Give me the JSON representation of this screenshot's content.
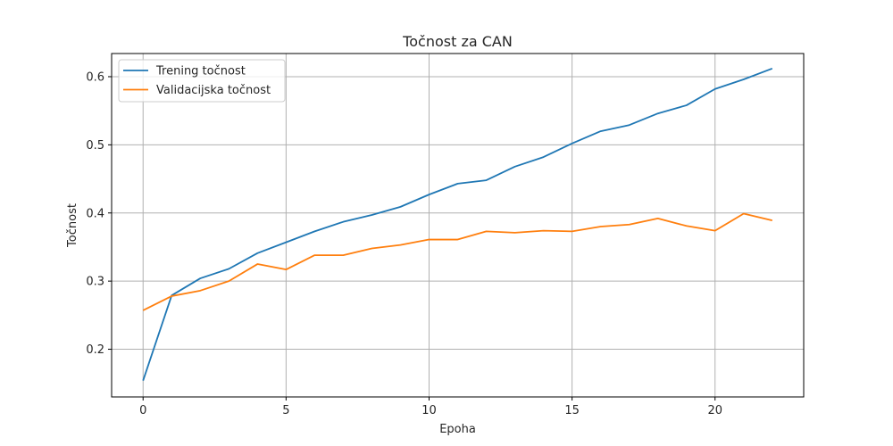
{
  "chart_data": {
    "type": "line",
    "title": "Točnost za CAN",
    "xlabel": "Epoha",
    "ylabel": "Točnost",
    "x": [
      0,
      1,
      2,
      3,
      4,
      5,
      6,
      7,
      8,
      9,
      10,
      11,
      12,
      13,
      14,
      15,
      16,
      17,
      18,
      19,
      20,
      21,
      22
    ],
    "xlim": [
      -1.1,
      23.1
    ],
    "ylim": [
      0.13,
      0.634
    ],
    "xticks": [
      0,
      5,
      10,
      15,
      20
    ],
    "yticks": [
      0.2,
      0.3,
      0.4,
      0.5,
      0.6
    ],
    "grid": true,
    "legend_position": "top-left",
    "series": [
      {
        "name": "Trening točnost",
        "color": "#1f77b4",
        "values": [
          0.154,
          0.279,
          0.304,
          0.318,
          0.341,
          0.357,
          0.373,
          0.387,
          0.397,
          0.409,
          0.427,
          0.443,
          0.448,
          0.468,
          0.482,
          0.502,
          0.52,
          0.529,
          0.546,
          0.558,
          0.582,
          0.596,
          0.612
        ]
      },
      {
        "name": "Validacijska točnost",
        "color": "#ff7f0e",
        "values": [
          0.257,
          0.278,
          0.286,
          0.3,
          0.325,
          0.317,
          0.338,
          0.338,
          0.348,
          0.353,
          0.361,
          0.361,
          0.373,
          0.371,
          0.374,
          0.373,
          0.38,
          0.383,
          0.392,
          0.381,
          0.374,
          0.399,
          0.389
        ]
      }
    ]
  }
}
